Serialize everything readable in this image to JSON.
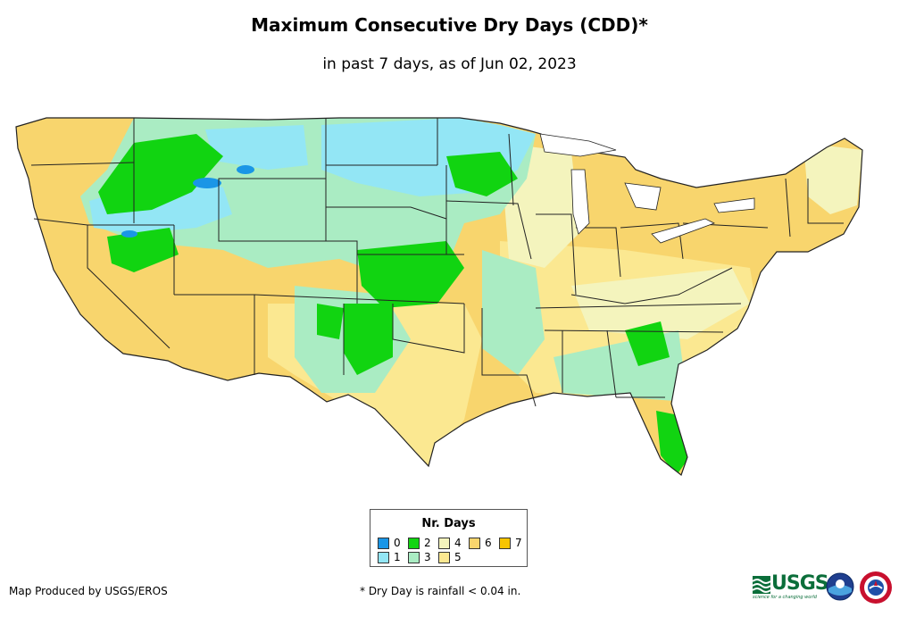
{
  "title": "Maximum Consecutive Dry Days (CDD)*",
  "subtitle": "in past 7 days, as of Jun 02, 2023",
  "legend": {
    "title": "Nr. Days",
    "items": [
      {
        "label": "0",
        "color": "#1a96e6"
      },
      {
        "label": "1",
        "color": "#93e6f5"
      },
      {
        "label": "2",
        "color": "#11d411"
      },
      {
        "label": "3",
        "color": "#aaecc3"
      },
      {
        "label": "4",
        "color": "#f4f4bd"
      },
      {
        "label": "5",
        "color": "#fbe891"
      },
      {
        "label": "6",
        "color": "#f8d56d"
      },
      {
        "label": "7",
        "color": "#f7c400"
      }
    ]
  },
  "credit": "Map Produced by USGS/EROS",
  "footnote": "* Dry Day is rainfall < 0.04 in.",
  "logos": {
    "usgs": {
      "wordmark": "USGS",
      "tagline": "science for a changing world"
    },
    "noaa": {
      "name": "noaa"
    },
    "nws": {
      "name": "National Weather Service"
    }
  },
  "regions": [
    {
      "id": "pacific-northwest",
      "days": 6
    },
    {
      "id": "idaho-montana-core",
      "days": 2
    },
    {
      "id": "northern-plains",
      "days": 1
    },
    {
      "id": "upper-midwest",
      "days": 1
    },
    {
      "id": "great-basin",
      "days": 6
    },
    {
      "id": "california",
      "days": 6
    },
    {
      "id": "southwest",
      "days": 6
    },
    {
      "id": "colorado-kansas",
      "days": 2
    },
    {
      "id": "oklahoma-plains",
      "days": 2
    },
    {
      "id": "texas",
      "days": 5
    },
    {
      "id": "great-lakes-northeast",
      "days": 6
    },
    {
      "id": "southeast",
      "days": 5
    },
    {
      "id": "florida",
      "days": 2
    }
  ]
}
